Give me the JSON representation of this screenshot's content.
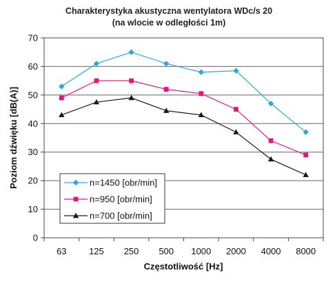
{
  "chart_data": {
    "type": "line",
    "title": "Charakterystyka akustyczna wentylatora WDc/s 20",
    "subtitle": "(na wlocie w odległości 1m)",
    "xlabel": "Częstotliwość [Hz]",
    "ylabel": "Poziom dźwięku [dB(A)]",
    "categories": [
      "63",
      "125",
      "250",
      "500",
      "1000",
      "2000",
      "4000",
      "8000"
    ],
    "ylim": [
      0,
      70
    ],
    "yticks": [
      0,
      10,
      20,
      30,
      40,
      50,
      60,
      70
    ],
    "grid": true,
    "legend_position": "bottom-left",
    "series": [
      {
        "name": "n=1450 [obr/min]",
        "color": "#29a8df",
        "marker": "diamond",
        "values": [
          53,
          61,
          65,
          61,
          58,
          58.5,
          47,
          37
        ]
      },
      {
        "name": "n=950 [obr/min]",
        "color": "#e5157e",
        "marker": "square",
        "values": [
          49,
          55,
          55,
          52,
          50.5,
          45,
          34,
          29
        ]
      },
      {
        "name": "n=700 [obr/min]",
        "color": "#1a1a1a",
        "marker": "triangle",
        "values": [
          43,
          47.5,
          49,
          44.5,
          43,
          37,
          27.5,
          22
        ]
      }
    ]
  }
}
